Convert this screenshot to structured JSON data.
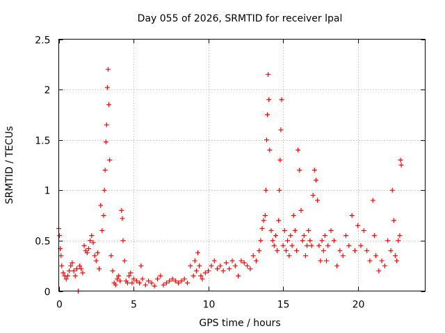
{
  "chart_data": {
    "type": "scatter",
    "title": "Day 055 of 2026, SRMTID for receiver lpal",
    "xlabel": "GPS time / hours",
    "ylabel": "SRMTID / TECUs",
    "xlim": [
      0,
      24.5
    ],
    "ylim": [
      0,
      2.5
    ],
    "xticks": [
      0,
      5,
      10,
      15,
      20
    ],
    "xtick_labels": [
      "0",
      "5",
      "10",
      "15",
      "20"
    ],
    "yticks": [
      0,
      0.5,
      1,
      1.5,
      2,
      2.5
    ],
    "ytick_labels": [
      "0",
      "0.5",
      "1",
      "1.5",
      "2",
      "2.5"
    ],
    "grid": true,
    "marker": "plus",
    "series": [
      {
        "name": "SRMTID",
        "color": "#ff0000",
        "x": [
          0.0,
          0.05,
          0.1,
          0.15,
          0.2,
          0.3,
          0.4,
          0.5,
          0.6,
          0.7,
          0.8,
          0.9,
          1.0,
          1.1,
          1.2,
          1.3,
          1.4,
          1.5,
          1.6,
          1.7,
          1.8,
          1.9,
          2.0,
          2.1,
          2.2,
          2.3,
          2.4,
          2.5,
          2.6,
          2.7,
          2.8,
          2.9,
          3.0,
          3.05,
          3.1,
          3.15,
          3.2,
          3.25,
          3.3,
          3.35,
          3.4,
          3.5,
          3.6,
          3.7,
          3.8,
          3.9,
          4.0,
          4.1,
          4.2,
          4.25,
          4.3,
          4.4,
          4.5,
          4.6,
          4.7,
          4.8,
          4.9,
          5.0,
          5.2,
          5.4,
          5.5,
          5.6,
          5.8,
          6.0,
          6.2,
          6.4,
          6.6,
          6.8,
          7.0,
          7.2,
          7.4,
          7.6,
          7.8,
          8.0,
          8.2,
          8.4,
          8.6,
          8.8,
          9.0,
          9.1,
          9.2,
          9.3,
          9.4,
          9.5,
          9.6,
          9.8,
          10.0,
          10.2,
          10.4,
          10.6,
          10.8,
          11.0,
          11.2,
          11.4,
          11.6,
          11.8,
          12.0,
          12.2,
          12.4,
          12.6,
          12.8,
          13.0,
          13.2,
          13.4,
          13.5,
          13.6,
          13.7,
          13.8,
          13.85,
          13.9,
          13.95,
          14.0,
          14.05,
          14.1,
          14.2,
          14.3,
          14.4,
          14.5,
          14.6,
          14.7,
          14.75,
          14.8,
          14.85,
          14.9,
          15.0,
          15.1,
          15.2,
          15.3,
          15.4,
          15.5,
          15.6,
          15.7,
          15.8,
          15.9,
          16.0,
          16.1,
          16.2,
          16.3,
          16.4,
          16.5,
          16.6,
          16.7,
          16.8,
          16.9,
          17.0,
          17.1,
          17.2,
          17.3,
          17.4,
          17.5,
          17.6,
          17.7,
          17.8,
          17.9,
          18.0,
          18.2,
          18.4,
          18.6,
          18.8,
          19.0,
          19.2,
          19.4,
          19.6,
          19.8,
          20.0,
          20.2,
          20.4,
          20.6,
          20.8,
          21.0,
          21.1,
          21.2,
          21.4,
          21.6,
          21.8,
          22.0,
          22.2,
          22.3,
          22.4,
          22.5,
          22.6,
          22.7,
          22.8,
          22.85,
          22.9
        ],
        "y": [
          0.62,
          0.55,
          0.42,
          0.35,
          0.25,
          0.18,
          0.15,
          0.12,
          0.15,
          0.2,
          0.25,
          0.28,
          0.2,
          0.15,
          0.22,
          0.0,
          0.25,
          0.22,
          0.18,
          0.45,
          0.4,
          0.38,
          0.42,
          0.5,
          0.55,
          0.48,
          0.35,
          0.3,
          0.38,
          0.22,
          0.85,
          0.6,
          0.75,
          1.0,
          1.2,
          1.48,
          1.65,
          2.02,
          2.2,
          1.85,
          1.3,
          0.35,
          0.2,
          0.08,
          0.06,
          0.12,
          0.15,
          0.1,
          0.8,
          0.72,
          0.5,
          0.3,
          0.1,
          0.08,
          0.15,
          0.18,
          0.08,
          0.12,
          0.1,
          0.08,
          0.25,
          0.12,
          0.06,
          0.1,
          0.08,
          0.05,
          0.12,
          0.15,
          0.06,
          0.08,
          0.1,
          0.12,
          0.1,
          0.08,
          0.1,
          0.12,
          0.08,
          0.25,
          0.15,
          0.3,
          0.2,
          0.38,
          0.25,
          0.15,
          0.12,
          0.18,
          0.2,
          0.25,
          0.3,
          0.22,
          0.25,
          0.2,
          0.28,
          0.22,
          0.3,
          0.25,
          0.15,
          0.3,
          0.28,
          0.25,
          0.22,
          0.35,
          0.3,
          0.4,
          0.5,
          0.62,
          0.7,
          0.75,
          1.0,
          1.5,
          1.75,
          2.15,
          1.9,
          1.4,
          0.6,
          0.5,
          0.45,
          0.55,
          0.4,
          0.7,
          1.0,
          1.3,
          1.6,
          1.9,
          0.45,
          0.6,
          0.4,
          0.5,
          0.35,
          0.55,
          0.45,
          0.75,
          0.6,
          0.4,
          1.4,
          1.2,
          0.8,
          0.5,
          0.55,
          0.35,
          0.45,
          0.6,
          0.5,
          0.45,
          0.95,
          1.2,
          1.1,
          0.9,
          0.45,
          0.3,
          0.5,
          0.4,
          0.55,
          0.3,
          0.45,
          0.6,
          0.5,
          0.25,
          0.4,
          0.35,
          0.55,
          0.45,
          0.75,
          0.4,
          0.65,
          0.45,
          0.6,
          0.4,
          0.3,
          0.9,
          0.55,
          0.35,
          0.2,
          0.3,
          0.25,
          0.5,
          0.4,
          1.0,
          0.7,
          0.35,
          0.3,
          0.5,
          0.55,
          1.3,
          1.25
        ]
      }
    ]
  }
}
